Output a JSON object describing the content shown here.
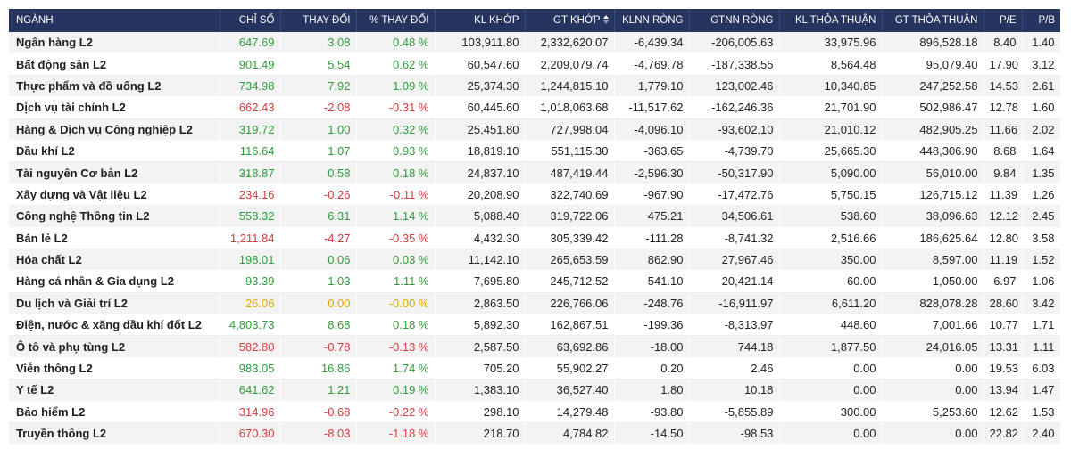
{
  "table": {
    "headers": {
      "sector": "NGÀNH",
      "index": "CHỈ SỐ",
      "change": "THAY ĐỔI",
      "pct_change": "% THAY ĐỔI",
      "kl_khop": "KL KHỚP",
      "gt_khop": "GT KHỚP",
      "klnn_rong": "KLNN RÒNG",
      "gtnn_rong": "GTNN RÒNG",
      "kl_thoa_thuan": "KL THỎA THUẬN",
      "gt_thoa_thuan": "GT THỎA THUẬN",
      "pe": "P/E",
      "pb": "P/B"
    },
    "sort": {
      "column": "gt_khop",
      "icon": "sort-icon"
    },
    "colors": {
      "header_bg": "#26355f",
      "up": "#2f9b3a",
      "down": "#d33c3c",
      "flat": "#e0a800"
    },
    "rows": [
      {
        "sector": "Ngân hàng L2",
        "trend": "up",
        "index": "647.69",
        "change": "3.08",
        "pct_change": "0.48 %",
        "kl_khop": "103,911.80",
        "gt_khop": "2,332,620.07",
        "klnn_rong": "-6,439.34",
        "gtnn_rong": "-206,005.63",
        "kl_thoa_thuan": "33,975.96",
        "gt_thoa_thuan": "896,528.18",
        "pe": "8.40",
        "pb": "1.40"
      },
      {
        "sector": "Bất động sản L2",
        "trend": "up",
        "index": "901.49",
        "change": "5.54",
        "pct_change": "0.62 %",
        "kl_khop": "60,547.60",
        "gt_khop": "2,209,079.74",
        "klnn_rong": "-4,769.78",
        "gtnn_rong": "-187,338.55",
        "kl_thoa_thuan": "8,564.48",
        "gt_thoa_thuan": "95,079.40",
        "pe": "17.90",
        "pb": "3.12"
      },
      {
        "sector": "Thực phẩm và đồ uống L2",
        "trend": "up",
        "index": "734.98",
        "change": "7.92",
        "pct_change": "1.09 %",
        "kl_khop": "25,374.30",
        "gt_khop": "1,244,815.10",
        "klnn_rong": "1,779.10",
        "gtnn_rong": "123,002.46",
        "kl_thoa_thuan": "10,340.85",
        "gt_thoa_thuan": "247,252.58",
        "pe": "14.53",
        "pb": "2.61"
      },
      {
        "sector": "Dịch vụ tài chính L2",
        "trend": "down",
        "index": "662.43",
        "change": "-2.08",
        "pct_change": "-0.31 %",
        "kl_khop": "60,445.60",
        "gt_khop": "1,018,063.68",
        "klnn_rong": "-11,517.62",
        "gtnn_rong": "-162,246.36",
        "kl_thoa_thuan": "21,701.90",
        "gt_thoa_thuan": "502,986.47",
        "pe": "12.78",
        "pb": "1.60"
      },
      {
        "sector": "Hàng & Dịch vụ Công nghiệp L2",
        "trend": "up",
        "index": "319.72",
        "change": "1.00",
        "pct_change": "0.32 %",
        "kl_khop": "25,451.80",
        "gt_khop": "727,998.04",
        "klnn_rong": "-4,096.10",
        "gtnn_rong": "-93,602.10",
        "kl_thoa_thuan": "21,010.12",
        "gt_thoa_thuan": "482,905.25",
        "pe": "11.66",
        "pb": "2.02"
      },
      {
        "sector": "Dầu khí L2",
        "trend": "up",
        "index": "116.64",
        "change": "1.07",
        "pct_change": "0.93 %",
        "kl_khop": "18,819.10",
        "gt_khop": "551,115.30",
        "klnn_rong": "-363.65",
        "gtnn_rong": "-4,739.70",
        "kl_thoa_thuan": "25,665.30",
        "gt_thoa_thuan": "448,306.90",
        "pe": "8.68",
        "pb": "1.64"
      },
      {
        "sector": "Tài nguyên Cơ bản L2",
        "trend": "up",
        "index": "318.87",
        "change": "0.58",
        "pct_change": "0.18 %",
        "kl_khop": "24,837.10",
        "gt_khop": "487,419.44",
        "klnn_rong": "-2,596.30",
        "gtnn_rong": "-50,317.90",
        "kl_thoa_thuan": "5,090.00",
        "gt_thoa_thuan": "56,010.00",
        "pe": "9.84",
        "pb": "1.35"
      },
      {
        "sector": "Xây dựng và Vật liệu L2",
        "trend": "down",
        "index": "234.16",
        "change": "-0.26",
        "pct_change": "-0.11 %",
        "kl_khop": "20,208.90",
        "gt_khop": "322,740.69",
        "klnn_rong": "-967.90",
        "gtnn_rong": "-17,472.76",
        "kl_thoa_thuan": "5,750.15",
        "gt_thoa_thuan": "126,715.12",
        "pe": "11.39",
        "pb": "1.26"
      },
      {
        "sector": "Công nghệ Thông tin L2",
        "trend": "up",
        "index": "558.32",
        "change": "6.31",
        "pct_change": "1.14 %",
        "kl_khop": "5,088.40",
        "gt_khop": "319,722.06",
        "klnn_rong": "475.21",
        "gtnn_rong": "34,506.61",
        "kl_thoa_thuan": "538.60",
        "gt_thoa_thuan": "38,096.63",
        "pe": "12.12",
        "pb": "2.45"
      },
      {
        "sector": "Bán lẻ L2",
        "trend": "down",
        "index": "1,211.84",
        "change": "-4.27",
        "pct_change": "-0.35 %",
        "kl_khop": "4,432.30",
        "gt_khop": "305,339.42",
        "klnn_rong": "-111.28",
        "gtnn_rong": "-8,741.32",
        "kl_thoa_thuan": "2,516.66",
        "gt_thoa_thuan": "186,625.64",
        "pe": "12.80",
        "pb": "3.58"
      },
      {
        "sector": "Hóa chất L2",
        "trend": "up",
        "index": "198.01",
        "change": "0.06",
        "pct_change": "0.03 %",
        "kl_khop": "11,142.10",
        "gt_khop": "265,653.59",
        "klnn_rong": "862.90",
        "gtnn_rong": "27,967.46",
        "kl_thoa_thuan": "350.00",
        "gt_thoa_thuan": "8,597.00",
        "pe": "11.19",
        "pb": "1.52"
      },
      {
        "sector": "Hàng cá nhân & Gia dụng L2",
        "trend": "up",
        "index": "93.39",
        "change": "1.03",
        "pct_change": "1.11 %",
        "kl_khop": "7,695.80",
        "gt_khop": "245,712.52",
        "klnn_rong": "541.10",
        "gtnn_rong": "20,421.14",
        "kl_thoa_thuan": "60.00",
        "gt_thoa_thuan": "1,050.00",
        "pe": "6.97",
        "pb": "1.06"
      },
      {
        "sector": "Du lịch và Giải trí L2",
        "trend": "flat",
        "index": "26.06",
        "change": "0.00",
        "pct_change": "-0.00 %",
        "kl_khop": "2,863.50",
        "gt_khop": "226,766.06",
        "klnn_rong": "-248.76",
        "gtnn_rong": "-16,911.97",
        "kl_thoa_thuan": "6,611.20",
        "gt_thoa_thuan": "828,078.28",
        "pe": "28.60",
        "pb": "3.42"
      },
      {
        "sector": "Điện, nước & xăng dầu khí đốt L2",
        "trend": "up",
        "index": "4,803.73",
        "change": "8.68",
        "pct_change": "0.18 %",
        "kl_khop": "5,892.30",
        "gt_khop": "162,867.51",
        "klnn_rong": "-199.36",
        "gtnn_rong": "-8,313.97",
        "kl_thoa_thuan": "448.60",
        "gt_thoa_thuan": "7,001.66",
        "pe": "10.77",
        "pb": "1.71"
      },
      {
        "sector": "Ô tô và phụ tùng L2",
        "trend": "down",
        "index": "582.80",
        "change": "-0.78",
        "pct_change": "-0.13 %",
        "kl_khop": "2,587.50",
        "gt_khop": "63,692.86",
        "klnn_rong": "-18.00",
        "gtnn_rong": "744.18",
        "kl_thoa_thuan": "1,877.50",
        "gt_thoa_thuan": "24,016.05",
        "pe": "13.31",
        "pb": "1.11"
      },
      {
        "sector": "Viễn thông L2",
        "trend": "up",
        "index": "983.05",
        "change": "16.86",
        "pct_change": "1.74 %",
        "kl_khop": "705.20",
        "gt_khop": "55,902.27",
        "klnn_rong": "0.20",
        "gtnn_rong": "2.46",
        "kl_thoa_thuan": "0.00",
        "gt_thoa_thuan": "0.00",
        "pe": "19.53",
        "pb": "6.03"
      },
      {
        "sector": "Y tế L2",
        "trend": "up",
        "index": "641.62",
        "change": "1.21",
        "pct_change": "0.19 %",
        "kl_khop": "1,383.10",
        "gt_khop": "36,527.40",
        "klnn_rong": "1.80",
        "gtnn_rong": "10.18",
        "kl_thoa_thuan": "0.00",
        "gt_thoa_thuan": "0.00",
        "pe": "13.94",
        "pb": "1.47"
      },
      {
        "sector": "Bảo hiểm L2",
        "trend": "down",
        "index": "314.96",
        "change": "-0.68",
        "pct_change": "-0.22 %",
        "kl_khop": "298.10",
        "gt_khop": "14,279.48",
        "klnn_rong": "-93.80",
        "gtnn_rong": "-5,855.89",
        "kl_thoa_thuan": "300.00",
        "gt_thoa_thuan": "5,253.60",
        "pe": "12.62",
        "pb": "1.53"
      },
      {
        "sector": "Truyền thông L2",
        "trend": "down",
        "index": "670.30",
        "change": "-8.03",
        "pct_change": "-1.18 %",
        "kl_khop": "218.70",
        "gt_khop": "4,784.82",
        "klnn_rong": "-14.50",
        "gtnn_rong": "-98.53",
        "kl_thoa_thuan": "0.00",
        "gt_thoa_thuan": "0.00",
        "pe": "22.82",
        "pb": "2.40"
      }
    ]
  }
}
